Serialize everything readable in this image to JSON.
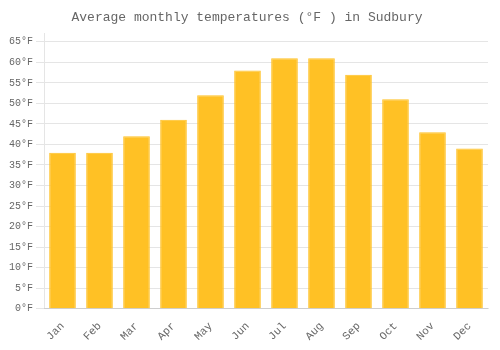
{
  "chart_data": {
    "type": "bar",
    "title": "Average monthly temperatures (°F ) in Sudbury",
    "categories": [
      "Jan",
      "Feb",
      "Mar",
      "Apr",
      "May",
      "Jun",
      "Jul",
      "Aug",
      "Sep",
      "Oct",
      "Nov",
      "Dec"
    ],
    "values": [
      38,
      38,
      42,
      46,
      52,
      58,
      61,
      61,
      57,
      51,
      43,
      39
    ],
    "color": "#FFC125",
    "ylim": [
      0,
      67
    ],
    "yticks": [
      {
        "value": 0,
        "label": "0°F"
      },
      {
        "value": 5,
        "label": "5°F"
      },
      {
        "value": 10,
        "label": "10°F"
      },
      {
        "value": 15,
        "label": "15°F"
      },
      {
        "value": 20,
        "label": "20°F"
      },
      {
        "value": 25,
        "label": "25°F"
      },
      {
        "value": 30,
        "label": "30°F"
      },
      {
        "value": 35,
        "label": "35°F"
      },
      {
        "value": 40,
        "label": "40°F"
      },
      {
        "value": 45,
        "label": "45°F"
      },
      {
        "value": 50,
        "label": "50°F"
      },
      {
        "value": 55,
        "label": "55°F"
      },
      {
        "value": 60,
        "label": "60°F"
      },
      {
        "value": 65,
        "label": "65°F"
      }
    ],
    "grid": true
  }
}
